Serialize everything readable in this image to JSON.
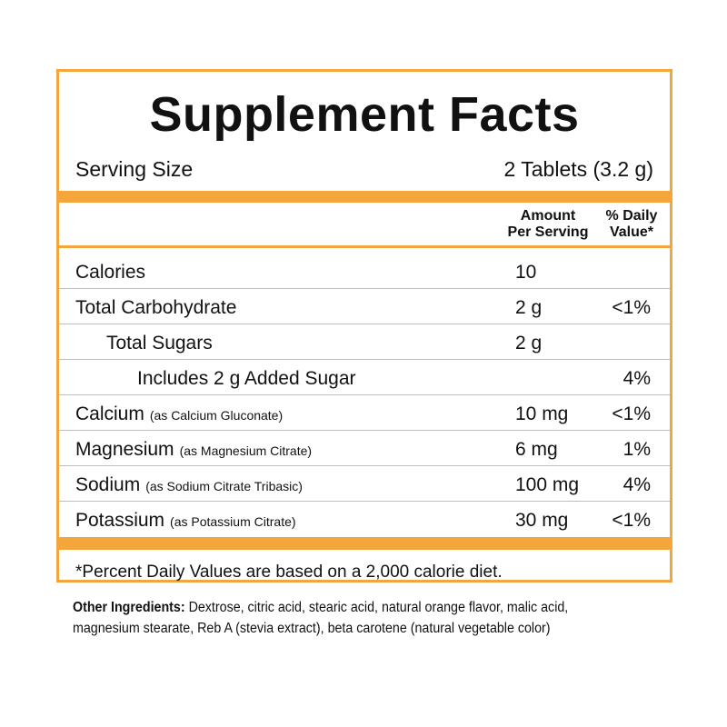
{
  "title": "Supplement Facts",
  "serving": {
    "label": "Serving Size",
    "value": "2 Tablets (3.2 g)"
  },
  "headers": {
    "amount_line1": "Amount",
    "amount_line2": "Per Serving",
    "dv_line1": "% Daily",
    "dv_line2": "Value*"
  },
  "rows": [
    {
      "name": "Calories",
      "sub": "",
      "amount": "10",
      "dv": ""
    },
    {
      "name": "Total Carbohydrate",
      "sub": "",
      "amount": "2 g",
      "dv": "<1%"
    },
    {
      "name": "Total Sugars",
      "sub": "",
      "amount": "2 g",
      "dv": ""
    },
    {
      "name": "Includes 2 g Added Sugar",
      "sub": "",
      "amount": "",
      "dv": "4%"
    },
    {
      "name": "Calcium",
      "sub": "(as Calcium Gluconate)",
      "amount": "10 mg",
      "dv": "<1%"
    },
    {
      "name": "Magnesium",
      "sub": "(as Magnesium Citrate)",
      "amount": "6 mg",
      "dv": "1%"
    },
    {
      "name": "Sodium",
      "sub": "(as Sodium Citrate Tribasic)",
      "amount": "100 mg",
      "dv": "4%"
    },
    {
      "name": "Potassium",
      "sub": "(as Potassium Citrate)",
      "amount": "30 mg",
      "dv": "<1%"
    }
  ],
  "footnote": "*Percent Daily Values are based on a 2,000 calorie diet.",
  "ingredients": {
    "label": "Other Ingredients:",
    "text": " Dextrose, citric acid, stearic acid, natural orange flavor, malic acid, magnesium stearate, Reb A (stevia extract), beta carotene (natural vegetable color)"
  },
  "colors": {
    "accent": "#f4a63a",
    "divider": "#bdbdbd"
  }
}
